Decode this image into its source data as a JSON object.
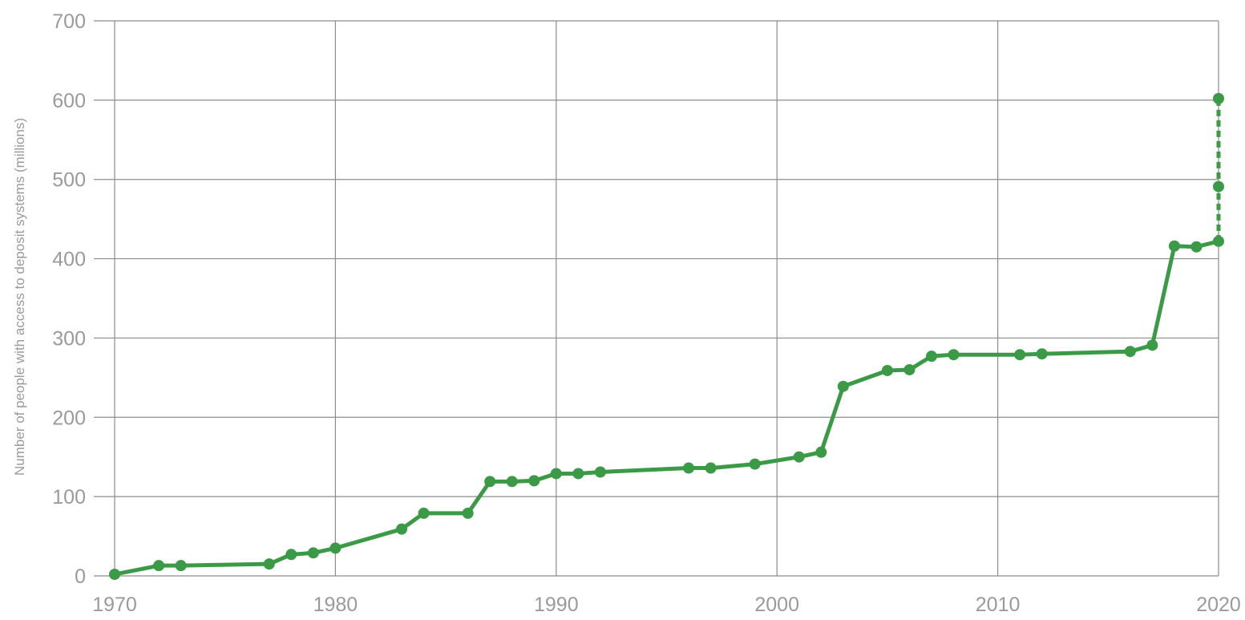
{
  "chart_data": {
    "type": "line",
    "title": "",
    "xlabel": "",
    "ylabel": "Number of people with access to deposit systems (millions)",
    "xlim": [
      1970,
      2020
    ],
    "ylim": [
      0,
      700
    ],
    "x_ticks": [
      "1970",
      "1980",
      "1990",
      "2000",
      "2010",
      "2020"
    ],
    "y_ticks": [
      "0",
      "100",
      "200",
      "300",
      "400",
      "500",
      "600",
      "700"
    ],
    "grid": true,
    "line_color": "#3a9a45",
    "series": [
      {
        "style": "solid",
        "points": [
          {
            "x": 1970,
            "y": 2
          },
          {
            "x": 1972,
            "y": 13
          },
          {
            "x": 1973,
            "y": 13
          },
          {
            "x": 1977,
            "y": 15
          },
          {
            "x": 1978,
            "y": 27
          },
          {
            "x": 1979,
            "y": 29
          },
          {
            "x": 1980,
            "y": 35
          },
          {
            "x": 1983,
            "y": 59
          },
          {
            "x": 1984,
            "y": 79
          },
          {
            "x": 1986,
            "y": 79
          },
          {
            "x": 1987,
            "y": 119
          },
          {
            "x": 1988,
            "y": 119
          },
          {
            "x": 1989,
            "y": 120
          },
          {
            "x": 1990,
            "y": 129
          },
          {
            "x": 1991,
            "y": 129
          },
          {
            "x": 1992,
            "y": 131
          },
          {
            "x": 1996,
            "y": 136
          },
          {
            "x": 1997,
            "y": 136
          },
          {
            "x": 1999,
            "y": 141
          },
          {
            "x": 2001,
            "y": 150
          },
          {
            "x": 2002,
            "y": 156
          },
          {
            "x": 2003,
            "y": 239
          },
          {
            "x": 2005,
            "y": 259
          },
          {
            "x": 2006,
            "y": 260
          },
          {
            "x": 2007,
            "y": 277
          },
          {
            "x": 2008,
            "y": 279
          },
          {
            "x": 2011,
            "y": 279
          },
          {
            "x": 2012,
            "y": 280
          },
          {
            "x": 2016,
            "y": 283
          },
          {
            "x": 2017,
            "y": 291
          },
          {
            "x": 2018,
            "y": 416
          },
          {
            "x": 2019,
            "y": 415
          },
          {
            "x": 2020,
            "y": 422
          }
        ]
      },
      {
        "style": "dashed",
        "points": [
          {
            "x": 2020,
            "y": 422
          },
          {
            "x": 2020,
            "y": 491
          },
          {
            "x": 2020,
            "y": 602
          }
        ]
      }
    ]
  }
}
